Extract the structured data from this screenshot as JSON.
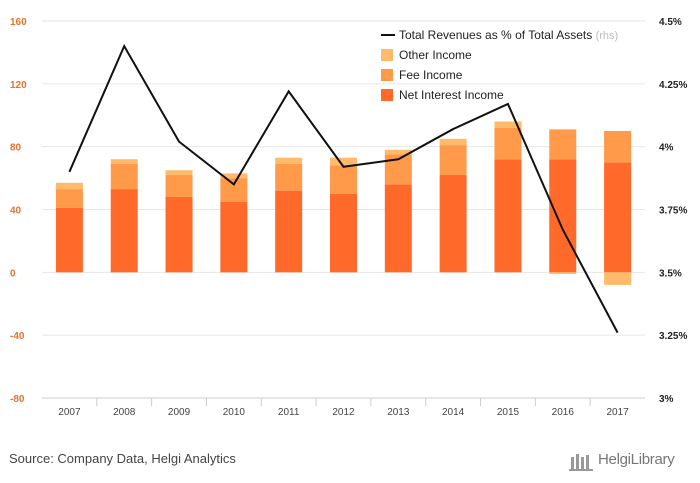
{
  "chart_data": {
    "type": "bar",
    "stacked": true,
    "categories": [
      "2007",
      "2008",
      "2009",
      "2010",
      "2011",
      "2012",
      "2013",
      "2014",
      "2015",
      "2016",
      "2017"
    ],
    "series": [
      {
        "name": "Net Interest Income",
        "values": [
          41,
          53,
          48,
          45,
          52,
          50,
          56,
          62,
          72,
          72,
          70
        ],
        "color": "#ff6a2a"
      },
      {
        "name": "Fee Income",
        "values": [
          12,
          16,
          14,
          15,
          17,
          18,
          19,
          19,
          20,
          19,
          20
        ],
        "color": "#ff9a4a"
      },
      {
        "name": "Other Income",
        "values": [
          4,
          3,
          3,
          3,
          4,
          5,
          3,
          4,
          4,
          -1,
          -8
        ],
        "color": "#ffbb6b"
      }
    ],
    "line_series": {
      "name": "Total Revenues as % of Total Assets",
      "axis_note": "(rhs)",
      "values": [
        3.9,
        4.4,
        4.02,
        3.85,
        4.22,
        3.92,
        3.95,
        4.07,
        4.17,
        3.67,
        3.26
      ],
      "color": "#111111"
    },
    "y_left": {
      "ticks": [
        160,
        120,
        80,
        40,
        0,
        -40,
        -80
      ],
      "ylim": [
        -80,
        160
      ]
    },
    "y_right": {
      "ticks": [
        "4.5%",
        "4.25%",
        "4%",
        "3.75%",
        "3.5%",
        "3.25%",
        "3%"
      ],
      "ylim": [
        3.0,
        4.5
      ]
    },
    "grid": true,
    "legend_position": "top-right"
  },
  "footer": {
    "source": "Source: Company Data, Helgi Analytics",
    "brand": "HelgiLibrary"
  }
}
